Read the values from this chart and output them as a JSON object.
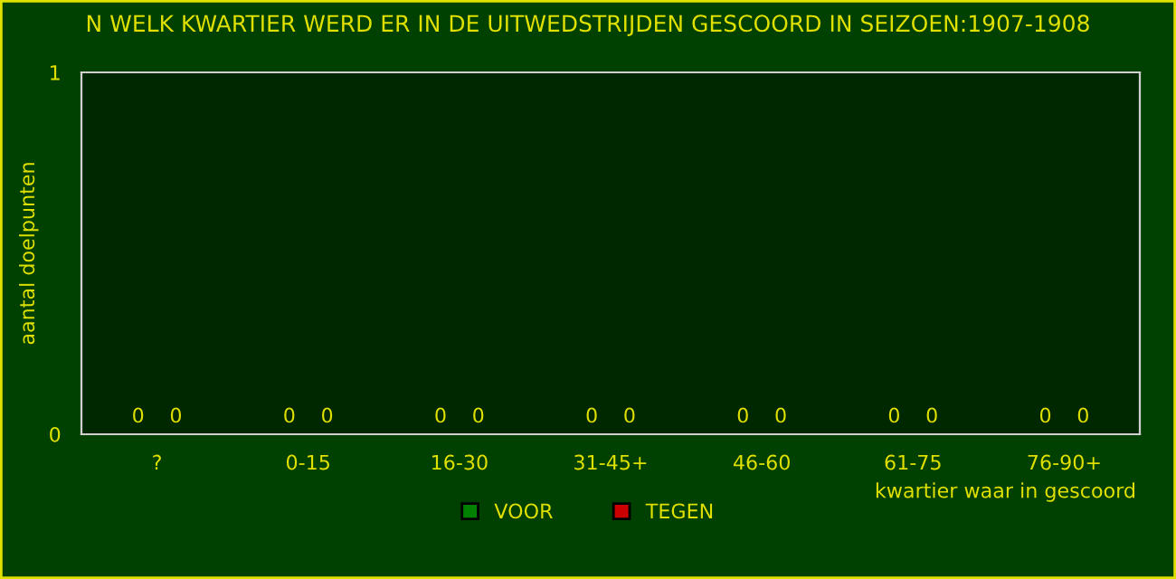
{
  "chart_data": {
    "type": "bar",
    "title": "N WELK KWARTIER WERD ER IN DE UITWEDSTRIJDEN GESCOORD IN SEIZOEN:1907-1908",
    "xlabel": "kwartier waar in gescoord",
    "ylabel": "aantal doelpunten",
    "categories": [
      "?",
      "0-15",
      "16-30",
      "31-45+",
      "46-60",
      "61-75",
      "76-90+"
    ],
    "series": [
      {
        "name": "VOOR",
        "color": "#008000",
        "values": [
          0,
          0,
          0,
          0,
          0,
          0,
          0
        ]
      },
      {
        "name": "TEGEN",
        "color": "#cc0000",
        "values": [
          0,
          0,
          0,
          0,
          0,
          0,
          0
        ]
      }
    ],
    "ylim": [
      0,
      1
    ],
    "yticks": [
      0,
      1
    ],
    "data_labels": true,
    "grid": false,
    "legend": "bottom"
  }
}
